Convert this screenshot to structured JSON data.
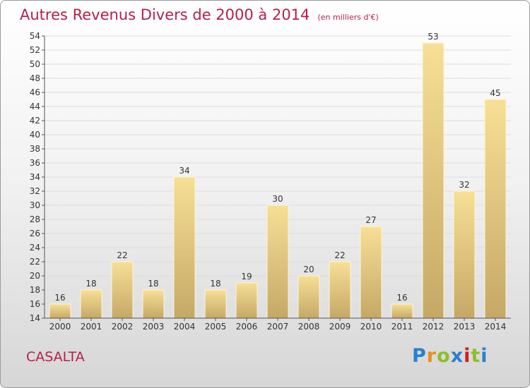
{
  "header": {
    "title": "Autres Revenus Divers de 2000 à 2014",
    "unit": "(en milliers d'€)"
  },
  "footer": {
    "commune": "CASALTA",
    "logo": {
      "letters": [
        "P",
        "r",
        "o",
        "x",
        "i",
        "t",
        "i"
      ],
      "colors": [
        "#2a7fd0",
        "#e8901c",
        "#8bbf2a",
        "#2a7fd0",
        "#d0201f",
        "#8bbf2a",
        "#2a7fd0"
      ]
    }
  },
  "chart_data": {
    "type": "bar",
    "title": "Autres Revenus Divers de 2000 à 2014",
    "subtitle": "(en milliers d'€)",
    "xlabel": "",
    "ylabel": "",
    "categories": [
      "2000",
      "2001",
      "2002",
      "2003",
      "2004",
      "2005",
      "2006",
      "2007",
      "2008",
      "2009",
      "2010",
      "2011",
      "2012",
      "2013",
      "2014"
    ],
    "values": [
      16,
      18,
      22,
      18,
      34,
      18,
      19,
      30,
      20,
      22,
      27,
      16,
      53,
      32,
      45
    ],
    "ylim": [
      14,
      54
    ],
    "yticks": [
      14,
      16,
      18,
      20,
      22,
      24,
      26,
      28,
      30,
      32,
      34,
      36,
      38,
      40,
      42,
      44,
      46,
      48,
      50,
      52,
      54
    ],
    "grid": true,
    "legend": "none",
    "colors": {
      "bar_top": "#f7df96",
      "bar_bottom": "#c5a866",
      "text": "#b5204a"
    }
  }
}
